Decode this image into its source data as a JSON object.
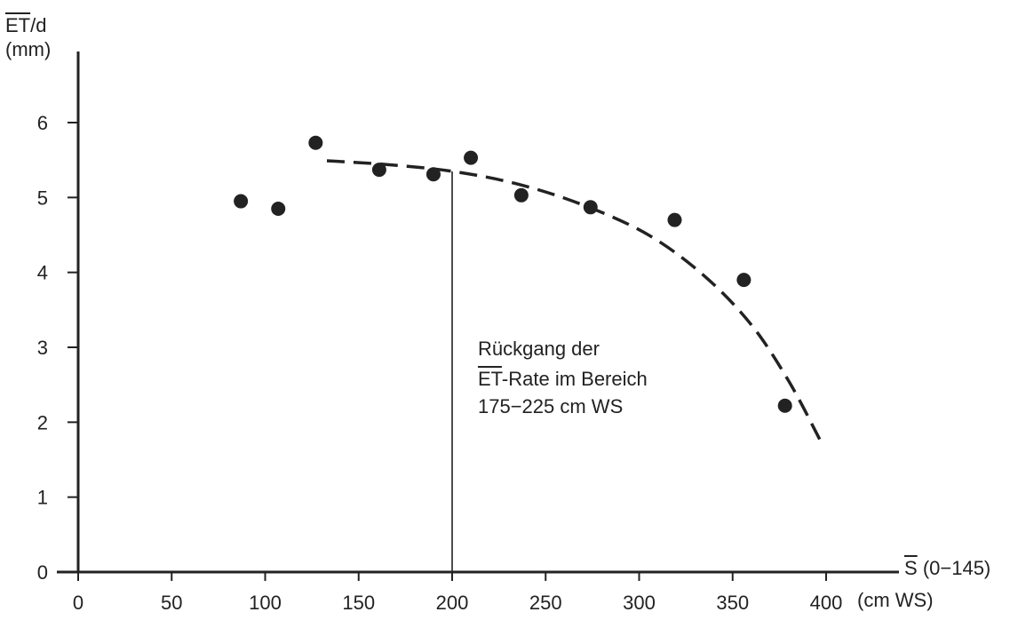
{
  "chart_data": {
    "type": "scatter",
    "ylabel_symbol": "ET",
    "ylabel_suffix": "/d",
    "ylabel_unit": "(mm)",
    "xlabel_symbol": "S",
    "xlabel_suffix": "(0−145)",
    "xunit": "(cm WS)",
    "xlim": [
      0,
      400
    ],
    "ylim": [
      0,
      6
    ],
    "xticks": [
      0,
      50,
      100,
      150,
      200,
      250,
      300,
      350,
      400
    ],
    "xtick_labels": [
      "0",
      "50",
      "100",
      "150",
      "200",
      "250",
      "300",
      "350",
      "400"
    ],
    "yticks": [
      0,
      1,
      2,
      3,
      4,
      5,
      6
    ],
    "ytick_labels": [
      "0",
      "1",
      "2",
      "3",
      "4",
      "5",
      "6"
    ],
    "grid": false,
    "points": [
      {
        "x": 87,
        "y": 4.95
      },
      {
        "x": 107,
        "y": 4.85
      },
      {
        "x": 127,
        "y": 5.73
      },
      {
        "x": 161,
        "y": 5.37
      },
      {
        "x": 190,
        "y": 5.31
      },
      {
        "x": 210,
        "y": 5.53
      },
      {
        "x": 237,
        "y": 5.03
      },
      {
        "x": 274,
        "y": 4.87
      },
      {
        "x": 319,
        "y": 4.7
      },
      {
        "x": 356,
        "y": 3.9
      },
      {
        "x": 378,
        "y": 2.22
      }
    ],
    "trend_curve": [
      {
        "x": 133,
        "y": 5.49
      },
      {
        "x": 165,
        "y": 5.44
      },
      {
        "x": 200,
        "y": 5.35
      },
      {
        "x": 235,
        "y": 5.18
      },
      {
        "x": 270,
        "y": 4.9
      },
      {
        "x": 305,
        "y": 4.5
      },
      {
        "x": 335,
        "y": 3.95
      },
      {
        "x": 360,
        "y": 3.3
      },
      {
        "x": 380,
        "y": 2.55
      },
      {
        "x": 397,
        "y": 1.75
      }
    ],
    "marker_line": {
      "x": 200,
      "y": 5.35
    },
    "annotation": {
      "line1": "Rückgang der",
      "line2_symbol": "ET",
      "line2_rest": "-Rate im Bereich",
      "line3": "175−225 cm WS"
    },
    "colors": {
      "ink": "#222222",
      "background": "#ffffff"
    }
  }
}
